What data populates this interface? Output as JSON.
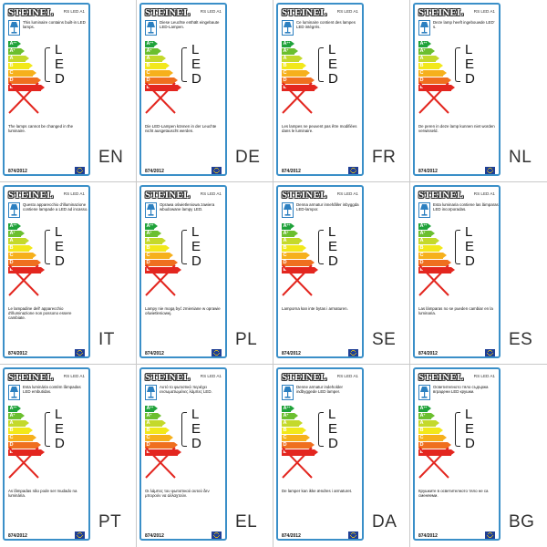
{
  "model": "RS LED A1",
  "brand": "STEINEL",
  "regulation": "874/2012",
  "led_letters": [
    "L",
    "E",
    "D"
  ],
  "energy_classes": [
    {
      "label": "A",
      "sup": "++",
      "color": "#1fa23a"
    },
    {
      "label": "A",
      "sup": "+",
      "color": "#6bbf2f"
    },
    {
      "label": "A",
      "sup": "",
      "color": "#c4d92b"
    },
    {
      "label": "B",
      "sup": "",
      "color": "#f2e81b"
    },
    {
      "label": "C",
      "sup": "",
      "color": "#f6b01c"
    },
    {
      "label": "D",
      "sup": "",
      "color": "#ef6f1f"
    },
    {
      "label": "E",
      "sup": "",
      "color": "#e3261f"
    }
  ],
  "colors": {
    "frame": "#3a8fc8",
    "cross": "#e3261f",
    "eu_flag": "#1f3f95"
  },
  "cells": [
    {
      "code": "EN",
      "intro": "This luminaire contains built-in LED lamps.",
      "change": "The lamps cannot be changed in the luminaire."
    },
    {
      "code": "DE",
      "intro": "Diese Leuchte enthält eingebaute LED-Lampen.",
      "change": "Die LED-Lampen können in der Leuchte nicht ausgetauscht werden."
    },
    {
      "code": "FR",
      "intro": "Ce luminaire contient des lampes LED intégrés.",
      "change": "Les lampes ne peuvent pas être modifiées dans le luminaire."
    },
    {
      "code": "NL",
      "intro": "Deze lamp heeft ingebouwde LED' s.",
      "change": "De peren in deze lamp kunnen niet worden verwisseld."
    },
    {
      "code": "IT",
      "intro": "Questo apparecchio d'illuminazione contiene lampade a LED ad incasso.",
      "change": "Le lampadine dell' apparecchio d'illuminazione non possono essere cambiate."
    },
    {
      "code": "PL",
      "intro": "Oprawa oświetleniowa zawiera wbudowane lampy LED.",
      "change": "Lampy nie mogą być zmieniane w oprawie oświetleniowej."
    },
    {
      "code": "SE",
      "intro": "Denna armatur innehåller inbyggda LED-lampor.",
      "change": "Lamporna kan inte bytas i armaturen."
    },
    {
      "code": "ES",
      "intro": "Esta luminaria contiene las lámparas LED incorporadas.",
      "change": "Las lámparas no se pueden cambiar en la luminaria."
    },
    {
      "code": "PT",
      "intro": "Esta luminária contém lâmpadas LED embutidas.",
      "change": "As lâmpadas não pode ser mudado na luminária."
    },
    {
      "code": "EL",
      "intro": "Αυτό το φωτιστικό περιέχει ενσωματωμένες λάμπες LED.",
      "change": "Οι λάμπες του φωτιστικού αυτού δεν μπορούν να αλλαχτούν."
    },
    {
      "code": "DA",
      "intro": "Denne armatur indeholder indbyggede LED lamper.",
      "change": "De lamper kan ikke ændres i armaturet."
    },
    {
      "code": "BG",
      "intro": "Осветителното тяло съдържа вградени LED крушки.",
      "change": "Крушките в осветителното тяло не са сменяеми."
    }
  ]
}
